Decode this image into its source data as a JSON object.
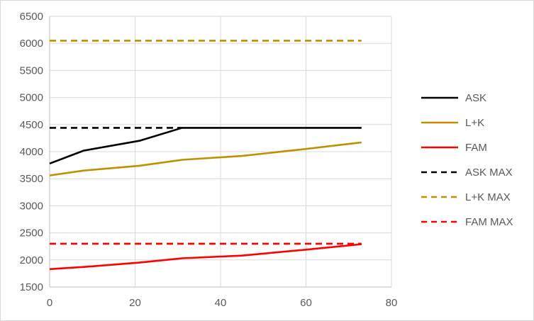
{
  "chart_data": {
    "type": "line",
    "title": "",
    "xlabel": "",
    "ylabel": "",
    "xlim": [
      0,
      80
    ],
    "ylim": [
      1500,
      6500
    ],
    "x_ticks": [
      0,
      20,
      40,
      60,
      80
    ],
    "y_ticks": [
      1500,
      2000,
      2500,
      3000,
      3500,
      4000,
      4500,
      5000,
      5500,
      6000,
      6500
    ],
    "grid": true,
    "legend_position": "right",
    "series": [
      {
        "name": "ASK",
        "color": "#000000",
        "dash": "solid",
        "points": [
          [
            0,
            3780
          ],
          [
            8,
            4020
          ],
          [
            21,
            4200
          ],
          [
            31,
            4440
          ],
          [
            73,
            4440
          ]
        ]
      },
      {
        "name": "L+K",
        "color": "#bf9000",
        "dash": "solid",
        "points": [
          [
            0,
            3560
          ],
          [
            8,
            3650
          ],
          [
            21,
            3740
          ],
          [
            31,
            3850
          ],
          [
            45,
            3920
          ],
          [
            60,
            4050
          ],
          [
            73,
            4170
          ]
        ]
      },
      {
        "name": "FAM",
        "color": "#ff0000",
        "dash": "solid",
        "points": [
          [
            0,
            1830
          ],
          [
            8,
            1870
          ],
          [
            21,
            1950
          ],
          [
            31,
            2030
          ],
          [
            45,
            2080
          ],
          [
            60,
            2190
          ],
          [
            73,
            2290
          ]
        ]
      },
      {
        "name": "ASK MAX",
        "color": "#000000",
        "dash": "dashed",
        "points": [
          [
            0,
            4440
          ],
          [
            31,
            4440
          ]
        ]
      },
      {
        "name": "L+K MAX",
        "color": "#bf9000",
        "dash": "dashed",
        "points": [
          [
            0,
            6050
          ],
          [
            73,
            6050
          ]
        ]
      },
      {
        "name": "FAM MAX",
        "color": "#ff0000",
        "dash": "dashed",
        "points": [
          [
            0,
            2300
          ],
          [
            73,
            2300
          ]
        ]
      }
    ]
  }
}
